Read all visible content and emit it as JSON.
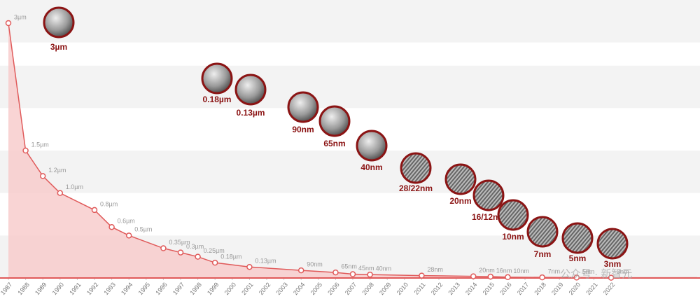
{
  "chart_data": {
    "type": "line",
    "x": [
      1987,
      1988,
      1989,
      1990,
      1992,
      1993,
      1994,
      1996,
      1997,
      1998,
      1999,
      2001,
      2004,
      2006,
      2007,
      2008,
      2011,
      2014,
      2015,
      2016,
      2018,
      2020,
      2022
    ],
    "series": [
      {
        "color": "#e05a5a",
        "values": [
          3,
          1.5,
          1.2,
          1.0,
          0.8,
          0.6,
          0.5,
          0.35,
          0.3,
          0.25,
          0.18,
          0.13,
          0.09,
          0.065,
          0.045,
          0.04,
          0.028,
          0.02,
          0.016,
          0.01,
          0.007,
          0.005,
          0.003
        ],
        "value_labels": [
          "3µm",
          "1.5µm",
          "1.2µm",
          "1.0µm",
          "0.8µm",
          "0.6µm",
          "0.5µm",
          "0.35µm",
          "0.3µm",
          "0.25µm",
          "0.18µm",
          "0.13µm",
          "90nm",
          "65nm",
          "45nm",
          "40nm",
          "28nm",
          "20nm",
          "16nm",
          "10nm",
          "7nm",
          "5nm",
          "3nm"
        ]
      }
    ],
    "xlim": [
      1987,
      2027
    ],
    "xticks": [
      1987,
      1988,
      1989,
      1990,
      1991,
      1992,
      1993,
      1994,
      1995,
      1996,
      1997,
      1998,
      1999,
      2000,
      2001,
      2002,
      2003,
      2004,
      2005,
      2006,
      2007,
      2008,
      2009,
      2010,
      2011,
      2012,
      2013,
      2014,
      2015,
      2016,
      2017,
      2018,
      2019,
      2020,
      2021,
      2022
    ],
    "ylim": [
      0,
      3
    ],
    "annotations": [
      "3µm",
      "0.18µm",
      "0.13µm",
      "90nm",
      "65nm",
      "40nm",
      "28/22nm",
      "20nm",
      "16/12nm",
      "10nm",
      "7nm",
      "5nm",
      "3nm"
    ],
    "watermark": "公众号 · 新智元"
  }
}
